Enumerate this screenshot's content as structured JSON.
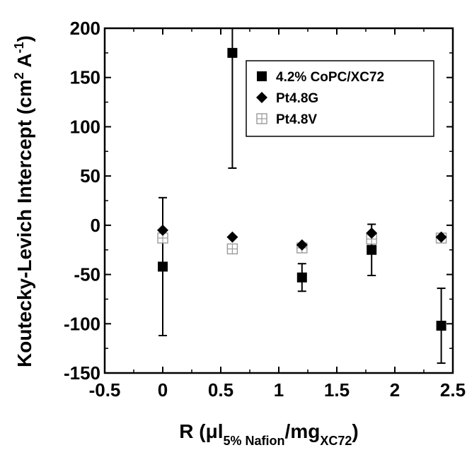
{
  "chart_data": {
    "type": "scatter",
    "title": "",
    "xlabel": {
      "main": "R (μl",
      "sub1": "5% Nafion",
      "mid": "/mg",
      "sub2": "XC72",
      "end": ")"
    },
    "ylabel": {
      "main": "Koutecky-Levich Intercept (cm",
      "sup1": "2",
      "mid": " A",
      "sup2": "-1",
      "end": ")"
    },
    "xlim": [
      -0.5,
      2.5
    ],
    "ylim": [
      -150,
      200
    ],
    "xticks": [
      "-0.5",
      "0",
      "0.5",
      "1",
      "1.5",
      "2",
      "2.5"
    ],
    "yticks": [
      "-150",
      "-100",
      "-50",
      "0",
      "50",
      "100",
      "150",
      "200"
    ],
    "grid": false,
    "legend": {
      "placement": "top-right"
    },
    "series": [
      {
        "name": "4.2% CoPC/XC72",
        "marker": "filled-square",
        "color": "#000000",
        "x": [
          0,
          0.6,
          1.2,
          1.8,
          2.4
        ],
        "y": [
          -42,
          175,
          -53,
          -25,
          -102
        ],
        "err": [
          70,
          117,
          14,
          26,
          38
        ]
      },
      {
        "name": "Pt4.8G",
        "marker": "filled-diamond",
        "color": "#000000",
        "x": [
          0,
          0.6,
          1.2,
          1.8,
          2.4
        ],
        "y": [
          -5,
          -12,
          -20,
          -8,
          -12
        ],
        "err": [
          0,
          0,
          0,
          0,
          0
        ]
      },
      {
        "name": "Pt4.8V",
        "marker": "open-square-plus",
        "color": "#9a9a9a",
        "x": [
          0,
          0.6,
          1.2,
          1.8,
          2.4
        ],
        "y": [
          -13,
          -24,
          -23,
          -14,
          -13
        ],
        "err": [
          0,
          0,
          0,
          0,
          0
        ]
      }
    ]
  }
}
